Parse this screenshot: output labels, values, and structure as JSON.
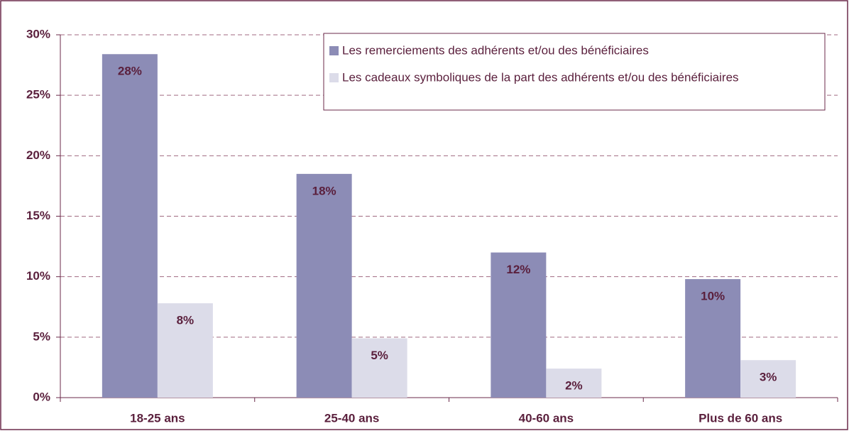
{
  "chart_data": {
    "type": "bar",
    "categories": [
      "18-25 ans",
      "25-40 ans",
      "40-60 ans",
      "Plus de 60 ans"
    ],
    "series": [
      {
        "name": "Les remerciements des adhérents et/ou des bénéficiaires",
        "color": "#8c8cb6",
        "values": [
          28.4,
          18.5,
          12.0,
          9.8
        ],
        "value_labels": [
          "28%",
          "18%",
          "12%",
          "10%"
        ]
      },
      {
        "name": "Les cadeaux symboliques de la part des adhérents et/ou des bénéficiaires",
        "color": "#dcdce9",
        "values": [
          7.8,
          4.9,
          2.4,
          3.1
        ],
        "value_labels": [
          "8%",
          "5%",
          "2%",
          "3%"
        ]
      }
    ],
    "ylim": [
      0,
      30
    ],
    "yticks": [
      {
        "value": 0,
        "label": "0%"
      },
      {
        "value": 5,
        "label": "5%"
      },
      {
        "value": 10,
        "label": "10%"
      },
      {
        "value": 15,
        "label": "15%"
      },
      {
        "value": 20,
        "label": "20%"
      },
      {
        "value": 25,
        "label": "25%"
      },
      {
        "value": 30,
        "label": "30%"
      }
    ],
    "grid": true,
    "legend": "top-right"
  }
}
